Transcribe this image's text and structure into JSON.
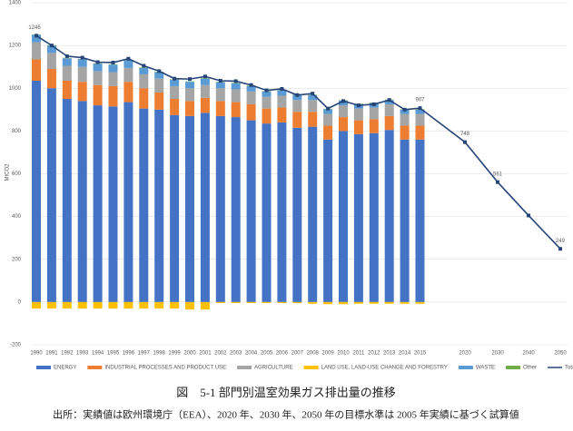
{
  "chart_data": {
    "type": "stacked-bar-line",
    "y_label": "MtCO2",
    "categories": [
      "1990",
      "1991",
      "1992",
      "1993",
      "1994",
      "1995",
      "1996",
      "1997",
      "1998",
      "1999",
      "2000",
      "2001",
      "2002",
      "2003",
      "2004",
      "2005",
      "2006",
      "2007",
      "2008",
      "2009",
      "2010",
      "2011",
      "2012",
      "2013",
      "2014",
      "2015",
      "2020",
      "2030",
      "2040",
      "2050"
    ],
    "ylim": [
      -200,
      1400
    ],
    "yticks": [
      -200,
      0,
      200,
      400,
      600,
      800,
      1000,
      1200,
      1400
    ],
    "grid": true,
    "legend": "bottom",
    "series": [
      {
        "name": "ENERGY",
        "color": "#4472c4",
        "values": [
          1035,
          1000,
          950,
          940,
          920,
          915,
          935,
          905,
          900,
          875,
          870,
          885,
          870,
          865,
          850,
          835,
          840,
          815,
          820,
          760,
          800,
          785,
          790,
          805,
          760,
          760,
          null,
          null,
          null,
          null
        ]
      },
      {
        "name": "INDUSTRIAL PROCESSES AND PRODUCT USE",
        "color": "#ed7d31",
        "values": [
          100,
          90,
          85,
          90,
          95,
          95,
          95,
          95,
          80,
          75,
          70,
          70,
          70,
          70,
          75,
          70,
          70,
          75,
          70,
          65,
          65,
          65,
          65,
          65,
          65,
          65,
          null,
          null,
          null,
          null
        ]
      },
      {
        "name": "AGRICULTURE",
        "color": "#a5a5a5",
        "values": [
          80,
          75,
          70,
          70,
          65,
          65,
          65,
          65,
          65,
          60,
          60,
          60,
          60,
          60,
          60,
          55,
          55,
          55,
          55,
          55,
          55,
          55,
          55,
          55,
          55,
          55,
          null,
          null,
          null,
          null
        ]
      },
      {
        "name": "LAND USE, LAND-USE CHANGE AND FORESTRY",
        "color": "#ffc000",
        "values": [
          -30,
          -30,
          -30,
          -30,
          -30,
          -30,
          -30,
          -30,
          -30,
          -30,
          -35,
          -35,
          -5,
          -5,
          -5,
          -5,
          -5,
          -5,
          -8,
          -10,
          -10,
          -8,
          -8,
          -8,
          -8,
          -8,
          null,
          null,
          null,
          null
        ]
      },
      {
        "name": "WASTE",
        "color": "#5b9bd5",
        "values": [
          35,
          35,
          35,
          35,
          35,
          35,
          35,
          30,
          30,
          30,
          30,
          30,
          28,
          28,
          26,
          25,
          25,
          24,
          23,
          22,
          22,
          21,
          21,
          20,
          20,
          20,
          null,
          null,
          null,
          null
        ]
      },
      {
        "name": "Other",
        "color": "#70ad47",
        "values": [
          2,
          2,
          2,
          2,
          2,
          2,
          2,
          2,
          2,
          2,
          2,
          2,
          2,
          2,
          2,
          2,
          2,
          2,
          2,
          2,
          2,
          2,
          2,
          2,
          2,
          2,
          null,
          null,
          null,
          null
        ]
      },
      {
        "name": "Total",
        "color": "#264478",
        "line": true,
        "values": [
          1246,
          1200,
          1150,
          1143,
          1122,
          1120,
          1138,
          1105,
          1080,
          1045,
          1043,
          1055,
          1035,
          1033,
          1015,
          990,
          997,
          968,
          975,
          905,
          940,
          920,
          925,
          945,
          900,
          907,
          748,
          561,
          405,
          249
        ],
        "value_labels": [
          "1246",
          null,
          null,
          null,
          null,
          null,
          null,
          null,
          null,
          null,
          null,
          null,
          null,
          null,
          null,
          null,
          null,
          null,
          null,
          null,
          null,
          null,
          null,
          null,
          null,
          "907",
          "748",
          "561",
          null,
          "249"
        ]
      }
    ],
    "caption": "図　5-1 部門別温室効果ガス排出量の推移",
    "source": "出所：実績値は欧州環境庁（EEA）、2020 年、2030 年、2050 年の目標水準は 2005 年実績に基づく試算値"
  }
}
